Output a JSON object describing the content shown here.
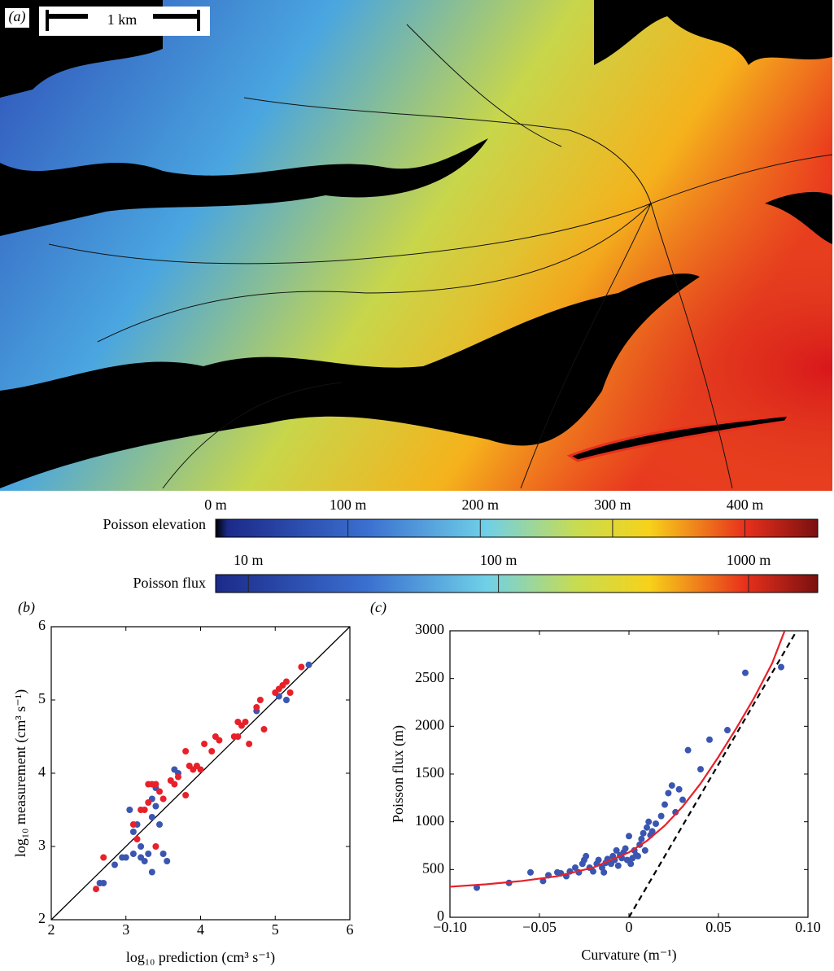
{
  "panel_a": {
    "label": "(a)",
    "scale_bar": "1 km"
  },
  "colorbars": [
    {
      "name": "Poisson elevation",
      "lim": [
        0,
        455
      ],
      "log": false,
      "ticks": [
        {
          "value": 0,
          "label": "0 m"
        },
        {
          "value": 100,
          "label": "100 m"
        },
        {
          "value": 200,
          "label": "200 m"
        },
        {
          "value": 300,
          "label": "300 m"
        },
        {
          "value": 400,
          "label": "400 m"
        }
      ]
    },
    {
      "name": "Poisson flux",
      "lim": [
        7.4,
        1890
      ],
      "log": true,
      "ticks": [
        {
          "value": 10,
          "label": "10 m"
        },
        {
          "value": 100,
          "label": "100 m"
        },
        {
          "value": 1000,
          "label": "1000 m"
        }
      ]
    }
  ],
  "chart_data": [
    {
      "type": "scatter",
      "label": "(b)",
      "xlabel": "log₁₀ prediction (cm³ s⁻¹)",
      "ylabel": "log₁₀ measurement (cm³ s⁻¹)",
      "xlim": [
        2,
        6
      ],
      "ylim": [
        2,
        6
      ],
      "xticks": [
        2,
        3,
        4,
        5,
        6
      ],
      "yticks": [
        2,
        3,
        4,
        5,
        6
      ],
      "identity_line": true,
      "series": [
        {
          "type": "scatter",
          "color": "#3a56b0",
          "x": [
            2.65,
            2.7,
            2.85,
            2.95,
            3.0,
            3.05,
            3.1,
            3.15,
            3.2,
            3.25,
            3.3,
            3.35,
            3.35,
            3.4,
            3.45,
            3.5,
            3.55,
            3.35,
            3.65,
            3.7,
            3.1,
            3.2,
            4.75,
            5.05,
            5.15,
            5.45,
            3.4
          ],
          "values": [
            2.5,
            2.5,
            2.75,
            2.85,
            2.85,
            3.5,
            2.9,
            3.3,
            2.85,
            2.8,
            2.9,
            2.65,
            3.4,
            3.55,
            3.3,
            2.9,
            2.8,
            3.65,
            4.05,
            4.0,
            3.2,
            3.0,
            4.85,
            5.05,
            5.0,
            5.48,
            3.8
          ]
        },
        {
          "type": "scatter",
          "color": "#e8202a",
          "x": [
            2.6,
            2.7,
            3.1,
            3.15,
            3.2,
            3.25,
            3.3,
            3.35,
            3.4,
            3.3,
            3.45,
            3.5,
            3.4,
            3.6,
            3.65,
            3.8,
            3.8,
            3.85,
            3.9,
            3.95,
            4.0,
            4.05,
            4.15,
            4.2,
            4.25,
            4.45,
            4.5,
            4.55,
            4.6,
            4.65,
            4.75,
            4.8,
            4.85,
            5.0,
            5.05,
            5.1,
            5.15,
            5.2,
            5.35,
            4.5,
            3.7
          ],
          "values": [
            2.42,
            2.85,
            3.3,
            3.1,
            3.5,
            3.5,
            3.6,
            3.85,
            3.85,
            3.85,
            3.75,
            3.65,
            3.0,
            3.9,
            3.85,
            3.7,
            4.3,
            4.1,
            4.05,
            4.1,
            4.05,
            4.4,
            4.3,
            4.5,
            4.45,
            4.5,
            4.7,
            4.65,
            4.7,
            4.4,
            4.9,
            5.0,
            4.6,
            5.1,
            5.15,
            5.2,
            5.25,
            5.1,
            5.45,
            4.5,
            3.95
          ]
        }
      ]
    },
    {
      "type": "scatter",
      "label": "(c)",
      "xlabel": "Curvature (m⁻¹)",
      "ylabel": "Poisson flux (m)",
      "xlim": [
        -0.1,
        0.1
      ],
      "ylim": [
        0,
        3000
      ],
      "xticks": [
        {
          "value": -0.1,
          "label": "−0.10"
        },
        {
          "value": -0.05,
          "label": "−0.05"
        },
        0,
        {
          "value": 0.05,
          "label": "0.05"
        },
        {
          "value": 0.1,
          "label": "0.10"
        }
      ],
      "yticks": [
        0,
        500,
        1000,
        1500,
        2000,
        2500,
        3000
      ],
      "series": [
        {
          "type": "scatter",
          "color": "#3a56b0",
          "x": [
            -0.085,
            -0.067,
            -0.055,
            -0.048,
            -0.045,
            -0.04,
            -0.038,
            -0.035,
            -0.033,
            -0.03,
            -0.028,
            -0.026,
            -0.025,
            -0.024,
            -0.022,
            -0.02,
            -0.018,
            -0.017,
            -0.015,
            -0.014,
            -0.013,
            -0.012,
            -0.01,
            -0.009,
            -0.008,
            -0.007,
            -0.006,
            -0.005,
            -0.004,
            -0.003,
            -0.002,
            -0.001,
            0,
            0.001,
            0.002,
            0.003,
            0.004,
            0.005,
            0.006,
            0.007,
            0.008,
            0.009,
            0.01,
            0.011,
            0.012,
            0.013,
            0.015,
            0.018,
            0.02,
            0.022,
            0.024,
            0.026,
            0.028,
            0.03,
            0.033,
            0.04,
            0.045,
            0.055,
            0.065,
            0.085
          ],
          "values": [
            310,
            360,
            470,
            380,
            440,
            470,
            460,
            430,
            480,
            520,
            470,
            560,
            600,
            640,
            520,
            480,
            560,
            600,
            520,
            470,
            570,
            610,
            560,
            640,
            600,
            700,
            540,
            650,
            620,
            680,
            720,
            600,
            850,
            560,
            620,
            700,
            650,
            640,
            760,
            820,
            880,
            700,
            940,
            1000,
            860,
            900,
            980,
            1060,
            1180,
            1300,
            1380,
            1100,
            1340,
            1230,
            1750,
            1550,
            1860,
            1960,
            2560,
            2620
          ]
        },
        {
          "type": "line",
          "color": "#e8202a",
          "dash": false,
          "x": [
            -0.1,
            -0.08,
            -0.06,
            -0.04,
            -0.02,
            0,
            0.01,
            0.02,
            0.03,
            0.04,
            0.05,
            0.06,
            0.07,
            0.08,
            0.087
          ],
          "values": [
            320,
            345,
            380,
            430,
            520,
            680,
            800,
            960,
            1160,
            1400,
            1680,
            1980,
            2300,
            2660,
            3000
          ]
        },
        {
          "type": "line",
          "color": "#000000",
          "dash": true,
          "x": [
            0,
            0.0937
          ],
          "values": [
            0,
            3000
          ]
        }
      ]
    }
  ]
}
